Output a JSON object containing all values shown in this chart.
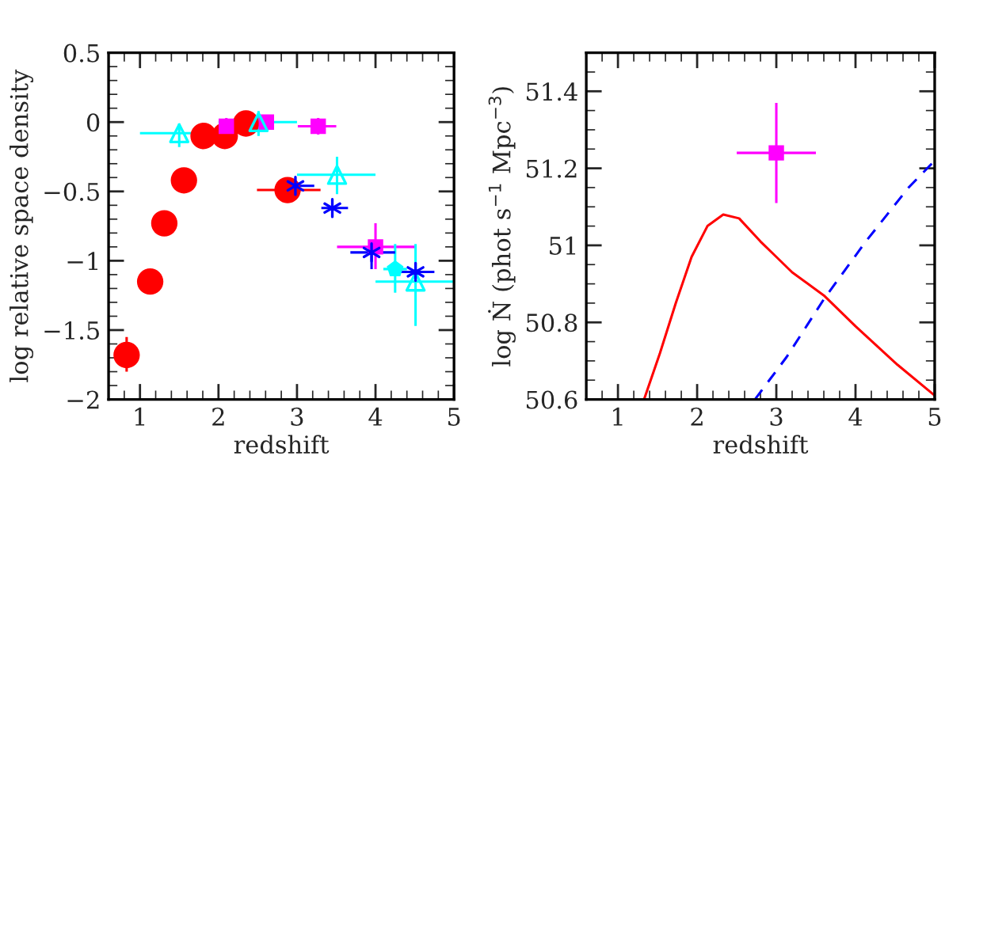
{
  "chart_data": [
    {
      "type": "scatter",
      "xlabel": "redshift",
      "ylabel": "log relative space density",
      "xlim": [
        0.6,
        5
      ],
      "ylim": [
        -2,
        0.5
      ],
      "xticks": [
        1,
        2,
        3,
        4,
        5
      ],
      "yticks": [
        -2,
        -1.5,
        -1,
        -0.5,
        0,
        0.5
      ],
      "grid": false,
      "legend": false,
      "series": [
        {
          "color": "#ff0000",
          "marker": "circle",
          "x": [
            0.83,
            1.13,
            1.31,
            1.56,
            1.81,
            2.08,
            2.35,
            2.88
          ],
          "values": [
            -1.68,
            -1.15,
            -0.73,
            -0.42,
            -0.1,
            -0.1,
            -0.01,
            -0.49
          ],
          "errors": [
            [
              -1.8,
              -1.55
            ],
            null,
            null,
            null,
            null,
            null,
            null,
            null
          ],
          "xerrors": [
            null,
            null,
            null,
            null,
            null,
            null,
            null,
            [
              2.49,
              3.3
            ]
          ]
        },
        {
          "color": "#ff00ff",
          "marker": "square",
          "x": [
            2.1,
            2.61,
            3.27,
            4.0
          ],
          "values": [
            -0.03,
            0.0,
            -0.03,
            -0.9
          ],
          "errors": [
            [
              -0.09,
              0.03
            ],
            null,
            [
              -0.09,
              0.03
            ],
            [
              -1.06,
              -0.73
            ]
          ],
          "xerrors": [
            null,
            null,
            [
              3.01,
              3.5
            ],
            [
              3.51,
              4.5
            ]
          ]
        },
        {
          "color": "#00ffff",
          "marker": "triangle",
          "x": [
            1.5,
            2.51,
            3.51,
            4.51
          ],
          "values": [
            -0.08,
            0.0,
            -0.38,
            -1.15
          ],
          "errors": [
            [
              -0.18,
              -0.01
            ],
            [
              -0.1,
              0.08
            ],
            [
              -0.52,
              -0.25
            ],
            [
              -1.47,
              -0.88
            ]
          ],
          "xerrors": [
            [
              1,
              2
            ],
            [
              2,
              3
            ],
            [
              3,
              4
            ],
            [
              4,
              5
            ]
          ]
        },
        {
          "color": "#00ffff",
          "x": [
            4.25
          ],
          "values": [
            -1.06
          ],
          "errors": [
            [
              -1.23,
              -0.88
            ]
          ],
          "xerrors": [
            [
              4.1,
              4.4
            ]
          ]
        },
        {
          "color": "#0000ff",
          "marker": "cross",
          "x": [
            2.98,
            3.45,
            3.95,
            4.51
          ],
          "values": [
            -0.46,
            -0.62,
            -0.94,
            -1.08
          ],
          "errors": [
            null,
            null,
            [
              -1.06,
              -0.85
            ],
            null
          ],
          "xerrors": [
            [
              2.73,
              3.22
            ],
            [
              3.31,
              3.65
            ],
            [
              3.68,
              4.25
            ],
            [
              4.23,
              4.75
            ]
          ]
        }
      ]
    },
    {
      "type": "line",
      "xlabel": "redshift",
      "ylabel": "log Ṅ (phot s$^{−1}$ Mpc$^{−3}$)",
      "xlim": [
        0.6,
        5
      ],
      "ylim": [
        50.6,
        51.5
      ],
      "xticks": [
        1,
        2,
        3,
        4,
        5
      ],
      "yticks": [
        50.6,
        50.8,
        51,
        51.2,
        51.4
      ],
      "grid": false,
      "legend": false,
      "series": [
        {
          "type": "line",
          "color": "#ff0000",
          "line_style": "solid",
          "x": [
            1.33,
            1.53,
            1.73,
            1.93,
            2.13,
            2.33,
            2.53,
            2.8,
            3.0,
            3.2,
            3.6,
            4.0,
            4.53,
            5.0
          ],
          "values": [
            50.6,
            50.72,
            50.85,
            50.97,
            51.05,
            51.08,
            51.07,
            51.01,
            50.97,
            50.93,
            50.87,
            50.79,
            50.69,
            50.61
          ]
        },
        {
          "type": "line",
          "color": "#0000ff",
          "line_style": "dashed",
          "x": [
            2.73,
            3.13,
            3.6,
            4.13,
            4.67,
            5.0
          ],
          "values": [
            50.6,
            50.71,
            50.86,
            51.01,
            51.15,
            51.22
          ]
        },
        {
          "type": "scatter",
          "color": "#ff00ff",
          "marker": "square",
          "x": [
            3
          ],
          "values": [
            51.24
          ],
          "errors": [
            [
              51.11,
              51.37
            ]
          ],
          "xerrors": [
            [
              2.5,
              3.5
            ]
          ]
        }
      ]
    }
  ]
}
